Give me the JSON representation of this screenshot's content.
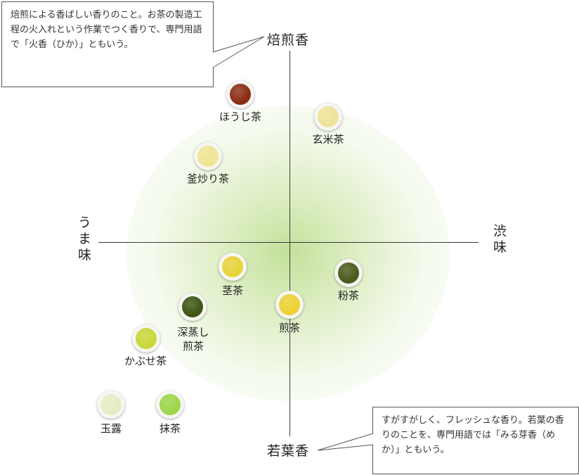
{
  "axes": {
    "top": "焙煎香",
    "bottom": "若葉香",
    "left": "うま味",
    "right": "渋味"
  },
  "notes": {
    "top_left": "焙煎による香ばしい香りのこと。お茶の製造工程の火入れという作業でつく香りで、専門用語で「火香（ひか）」ともいう。",
    "bottom_right": "すがすがしく、フレッシュな香り。若葉の香りのことを、専門用語では「みる芽香（めか）」ともいう。"
  },
  "teas": [
    {
      "name": "ほうじ茶",
      "color": "#8a2c14"
    },
    {
      "name": "玄米茶",
      "color": "#efe39a"
    },
    {
      "name": "釜炒り茶",
      "color": "#f0e592"
    },
    {
      "name": "茎茶",
      "color": "#e8d43a"
    },
    {
      "name": "粉茶",
      "color": "#4a5a1a"
    },
    {
      "name": "深蒸し\n煎茶",
      "color": "#3e5514"
    },
    {
      "name": "煎茶",
      "color": "#ecd233"
    },
    {
      "name": "かぶせ茶",
      "color": "#c8d83a"
    },
    {
      "name": "玉露",
      "color": "#e8ecc4"
    },
    {
      "name": "抹茶",
      "color": "#9ed64a"
    }
  ]
}
